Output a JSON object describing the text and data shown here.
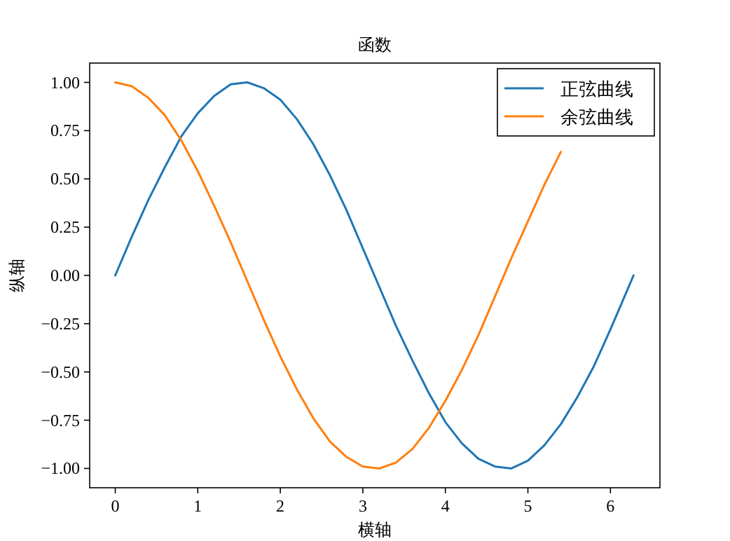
{
  "chart_data": {
    "type": "line",
    "title": "函数",
    "xlabel": "横轴",
    "ylabel": "纵轴",
    "x": [
      0,
      0.2,
      0.4,
      0.6,
      0.8,
      1.0,
      1.2,
      1.4,
      1.6,
      1.8,
      2.0,
      2.2,
      2.4,
      2.6,
      2.8,
      3.0,
      3.2,
      3.4,
      3.6,
      3.8,
      4.0,
      4.2,
      4.4,
      4.6,
      4.8,
      5.0,
      5.2,
      5.4,
      5.6,
      5.8,
      6.0,
      6.2,
      6.28
    ],
    "series": [
      {
        "name": "正弦曲线",
        "color": "#1f77b4",
        "values": [
          0,
          0.2,
          0.39,
          0.56,
          0.72,
          0.84,
          0.93,
          0.99,
          1.0,
          0.97,
          0.91,
          0.81,
          0.68,
          0.52,
          0.34,
          0.14,
          -0.06,
          -0.26,
          -0.44,
          -0.61,
          -0.76,
          -0.87,
          -0.95,
          -0.99,
          -1.0,
          -0.96,
          -0.88,
          -0.77,
          -0.63,
          -0.47,
          -0.28,
          -0.08,
          0.0
        ]
      },
      {
        "name": "余弦曲线",
        "color": "#ff7f0e",
        "values": [
          1.0,
          0.98,
          0.92,
          0.83,
          0.7,
          0.54,
          0.36,
          0.17,
          -0.03,
          -0.23,
          -0.42,
          -0.59,
          -0.74,
          -0.86,
          -0.94,
          -0.99,
          -1.0,
          -0.97,
          -0.9,
          -0.79,
          -0.65,
          -0.49,
          -0.31,
          -0.11,
          0.09,
          0.28,
          0.47,
          0.64,
          null,
          null,
          null,
          null,
          null
        ]
      }
    ],
    "xlim": [
      -0.31,
      6.6
    ],
    "ylim": [
      -1.1,
      1.1
    ],
    "xticks": [
      0,
      1,
      2,
      3,
      4,
      5,
      6
    ],
    "yticks": [
      {
        "value": -1,
        "label": "−1.00"
      },
      {
        "value": -0.75,
        "label": "−0.75"
      },
      {
        "value": -0.5,
        "label": "−0.50"
      },
      {
        "value": -0.25,
        "label": "−0.25"
      },
      {
        "value": 0,
        "label": "0.00"
      },
      {
        "value": 0.25,
        "label": "0.25"
      },
      {
        "value": 0.5,
        "label": "0.50"
      },
      {
        "value": 0.75,
        "label": "0.75"
      },
      {
        "value": 1,
        "label": "1.00"
      }
    ],
    "legend": "top right",
    "grid": false,
    "marker": "none",
    "line_style": "solid"
  }
}
